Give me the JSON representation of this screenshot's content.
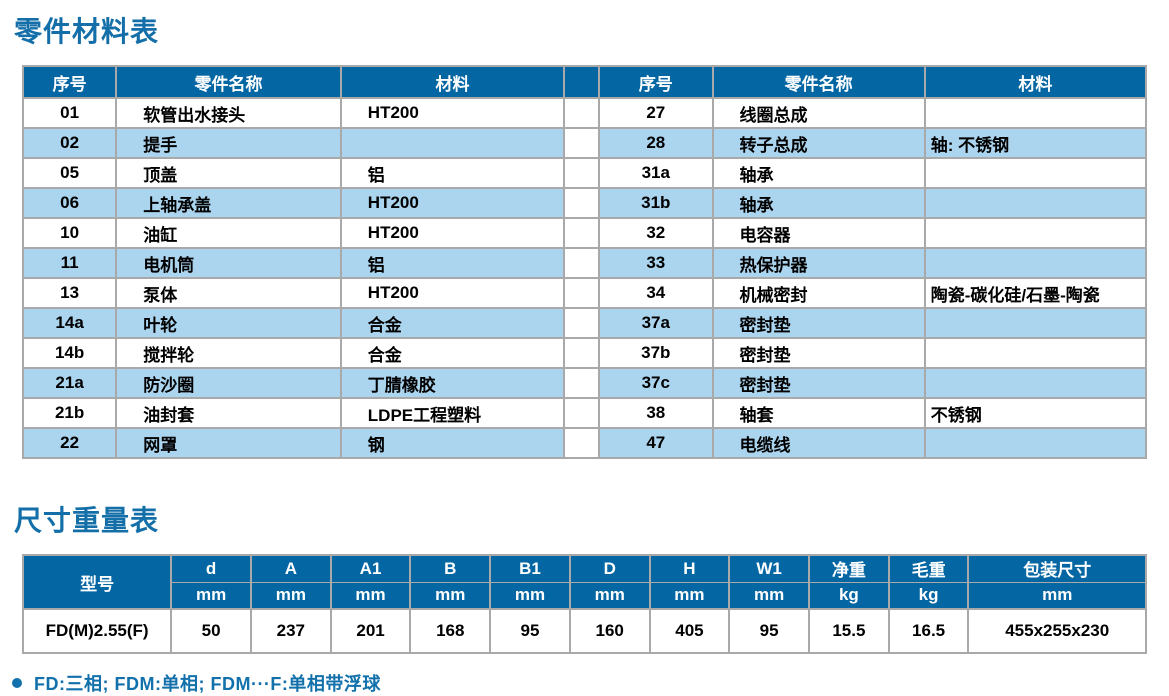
{
  "theme": {
    "header_blue": "#0466a3",
    "alt_row_blue": "#abd4ee",
    "title_blue": "#146fa9",
    "border_gray": "#a9a9a9"
  },
  "parts_table": {
    "title": "零件材料表",
    "headers": {
      "no": "序号",
      "name": "零件名称",
      "material": "材料"
    },
    "left_rows": [
      {
        "no": "01",
        "name": "软管出水接头",
        "material": "HT200"
      },
      {
        "no": "02",
        "name": "提手",
        "material": ""
      },
      {
        "no": "05",
        "name": "顶盖",
        "material": "铝"
      },
      {
        "no": "06",
        "name": "上轴承盖",
        "material": "HT200"
      },
      {
        "no": "10",
        "name": "油缸",
        "material": "HT200"
      },
      {
        "no": "11",
        "name": "电机筒",
        "material": "铝"
      },
      {
        "no": "13",
        "name": "泵体",
        "material": "HT200"
      },
      {
        "no": "14a",
        "name": "叶轮",
        "material": "合金"
      },
      {
        "no": "14b",
        "name": "搅拌轮",
        "material": "合金"
      },
      {
        "no": "21a",
        "name": "防沙圈",
        "material": "丁腈橡胶"
      },
      {
        "no": "21b",
        "name": "油封套",
        "material": "LDPE工程塑料"
      },
      {
        "no": "22",
        "name": "网罩",
        "material": "钢"
      }
    ],
    "right_rows": [
      {
        "no": "27",
        "name": "线圈总成",
        "material": ""
      },
      {
        "no": "28",
        "name": "转子总成",
        "material": "轴: 不锈钢"
      },
      {
        "no": "31a",
        "name": "轴承",
        "material": ""
      },
      {
        "no": "31b",
        "name": "轴承",
        "material": ""
      },
      {
        "no": "32",
        "name": "电容器",
        "material": ""
      },
      {
        "no": "33",
        "name": "热保护器",
        "material": ""
      },
      {
        "no": "34",
        "name": "机械密封",
        "material": "陶瓷-碳化硅/石墨-陶瓷"
      },
      {
        "no": "37a",
        "name": "密封垫",
        "material": ""
      },
      {
        "no": "37b",
        "name": "密封垫",
        "material": ""
      },
      {
        "no": "37c",
        "name": "密封垫",
        "material": ""
      },
      {
        "no": "38",
        "name": "轴套",
        "material": "不锈钢"
      },
      {
        "no": "47",
        "name": "电缆线",
        "material": ""
      }
    ]
  },
  "dimensions_table": {
    "title": "尺寸重量表",
    "model_header": "型号",
    "columns": [
      {
        "label": "d",
        "unit": "mm"
      },
      {
        "label": "A",
        "unit": "mm"
      },
      {
        "label": "A1",
        "unit": "mm"
      },
      {
        "label": "B",
        "unit": "mm"
      },
      {
        "label": "B1",
        "unit": "mm"
      },
      {
        "label": "D",
        "unit": "mm"
      },
      {
        "label": "H",
        "unit": "mm"
      },
      {
        "label": "W1",
        "unit": "mm"
      },
      {
        "label": "净重",
        "unit": "kg"
      },
      {
        "label": "毛重",
        "unit": "kg"
      },
      {
        "label": "包装尺寸",
        "unit": "mm"
      }
    ],
    "row": {
      "model": "FD(M)2.55(F)",
      "values": [
        "50",
        "237",
        "201",
        "168",
        "95",
        "160",
        "405",
        "95",
        "15.5",
        "16.5",
        "455x255x230"
      ]
    }
  },
  "footnote": {
    "text": "FD:三相; FDM:单相; FDM···F:单相带浮球"
  }
}
